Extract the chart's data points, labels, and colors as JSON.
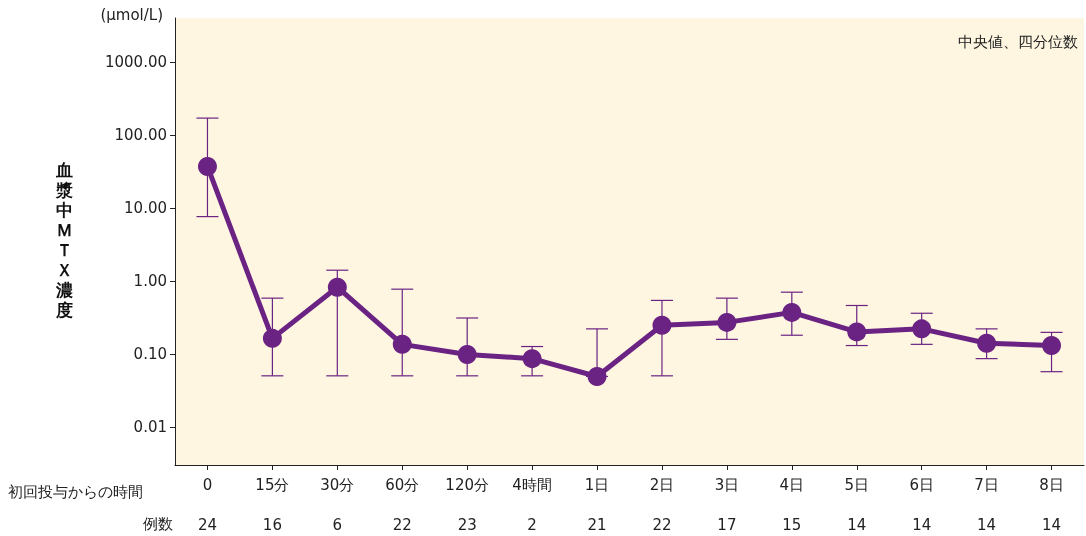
{
  "chart_data": {
    "type": "line",
    "ylabel": "血漿中ＭＴＸ濃度",
    "xlabel": "初回投与からの時間",
    "categories": [
      "0",
      "15分",
      "30分",
      "60分",
      "120分",
      "4時間",
      "1日",
      "2日",
      "3日",
      "4日",
      "5日",
      "6日",
      "7日",
      "8日"
    ],
    "series": [
      {
        "color": "#6b2383",
        "values": [
          37,
          0.163,
          0.82,
          0.135,
          0.098,
          0.086,
          0.049,
          0.246,
          0.27,
          0.37,
          0.2,
          0.22,
          0.14,
          0.13
        ],
        "errors": [
          [
            7.6,
            170
          ],
          [
            0.05,
            0.58
          ],
          [
            0.05,
            1.4
          ],
          [
            0.05,
            0.77
          ],
          [
            0.05,
            0.31
          ],
          [
            0.05,
            0.126
          ],
          [
            0.049,
            0.22
          ],
          [
            0.05,
            0.54
          ],
          [
            0.158,
            0.58
          ],
          [
            0.18,
            0.7
          ],
          [
            0.13,
            0.46
          ],
          [
            0.135,
            0.36
          ],
          [
            0.086,
            0.22
          ],
          [
            0.057,
            0.197
          ]
        ]
      }
    ],
    "log": "y",
    "ylim": [
      0.003,
      4000
    ],
    "yticks": [
      {
        "value": 0.01,
        "label": "0.01"
      },
      {
        "value": 0.1,
        "label": "0.10"
      },
      {
        "value": 1,
        "label": "1.00"
      },
      {
        "value": 10,
        "label": "10.00"
      },
      {
        "value": 100,
        "label": "100.00"
      },
      {
        "value": 1000,
        "label": "1000.00"
      }
    ],
    "marker": "circle",
    "line_style": "solid",
    "grid": false,
    "annotations": [
      "(µmol/L)",
      "中央値、四分位数",
      "例数",
      "24",
      "16",
      "6",
      "22",
      "23",
      "2",
      "21",
      "22",
      "17",
      "15",
      "14",
      "14",
      "14",
      "14"
    ]
  }
}
